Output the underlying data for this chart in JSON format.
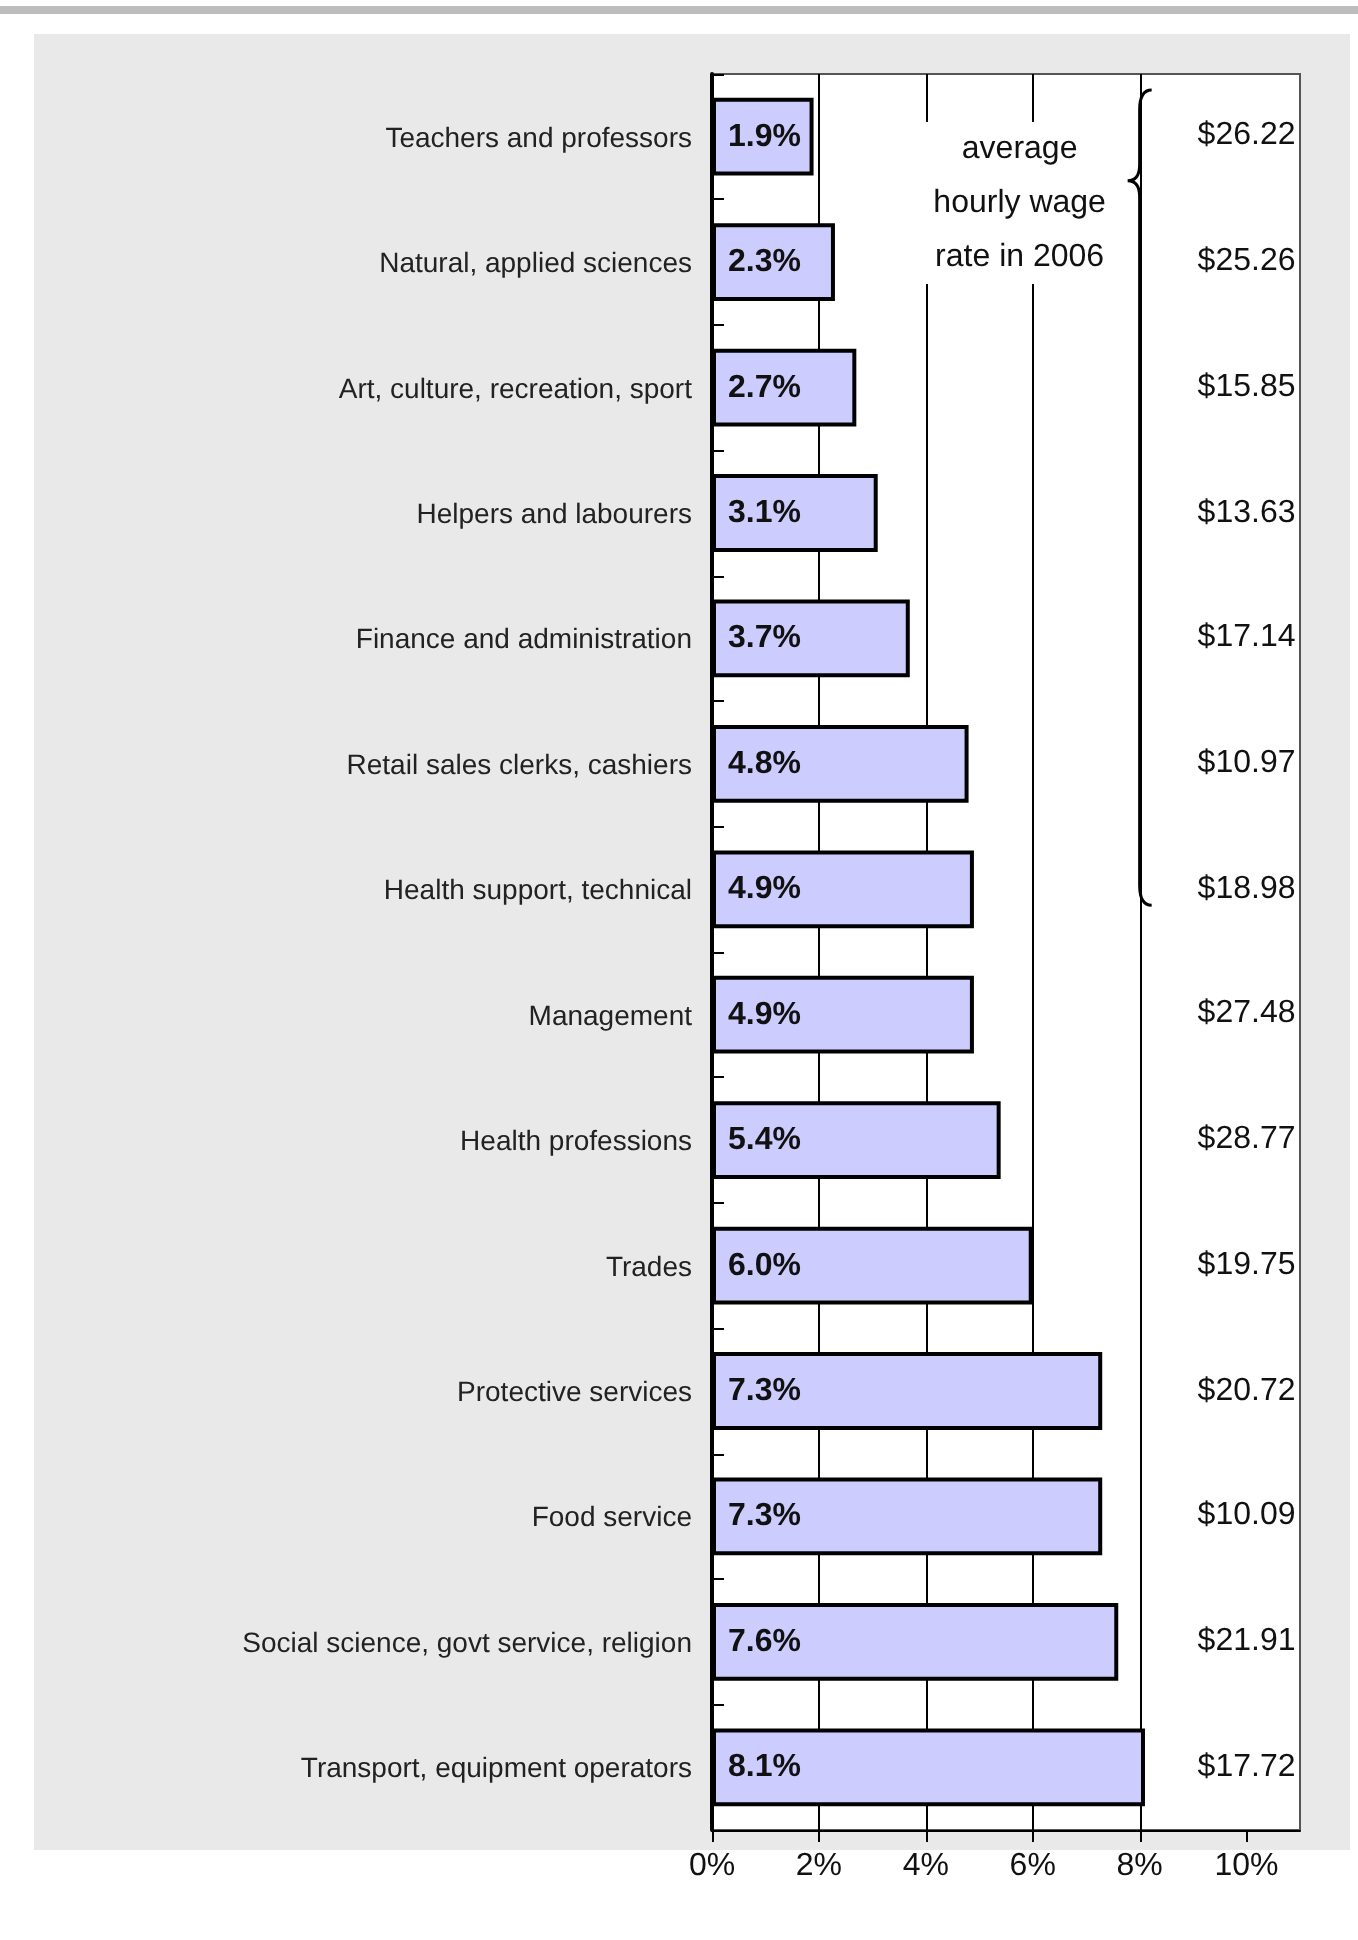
{
  "chart_data": {
    "type": "bar",
    "orientation": "horizontal",
    "categories": [
      "Teachers and professors",
      "Natural, applied sciences",
      "Art, culture, recreation, sport",
      "Helpers and labourers",
      "Finance and administration",
      "Retail sales clerks, cashiers",
      "Health support, technical",
      "Management",
      "Health professions",
      "Trades",
      "Protective services",
      "Food service",
      "Social science, govt service, religion",
      "Transport, equipment operators"
    ],
    "values": [
      1.9,
      2.3,
      2.7,
      3.1,
      3.7,
      4.8,
      4.9,
      4.9,
      5.4,
      6.0,
      7.3,
      7.3,
      7.6,
      8.1
    ],
    "value_labels": [
      "1.9%",
      "2.3%",
      "2.7%",
      "3.1%",
      "3.7%",
      "4.8%",
      "4.9%",
      "4.9%",
      "5.4%",
      "6.0%",
      "7.3%",
      "7.3%",
      "7.6%",
      "8.1%"
    ],
    "color": "#ccccff",
    "xlim": [
      0,
      11
    ],
    "xticks": [
      {
        "value": 0,
        "label": "0%"
      },
      {
        "value": 2,
        "label": "2%"
      },
      {
        "value": 4,
        "label": "4%"
      },
      {
        "value": 6,
        "label": "6%"
      },
      {
        "value": 8,
        "label": "8%"
      },
      {
        "value": 10,
        "label": "10%"
      }
    ],
    "grid": "x",
    "annotations": [
      "average hourly wage rate in 2006",
      "$26.22",
      "$25.26",
      "$15.85",
      "$13.63",
      "$17.14",
      "$10.97",
      "$18.98",
      "$27.48",
      "$28.77",
      "$19.75",
      "$20.72",
      "$10.09",
      "$21.91",
      "$17.72"
    ]
  }
}
